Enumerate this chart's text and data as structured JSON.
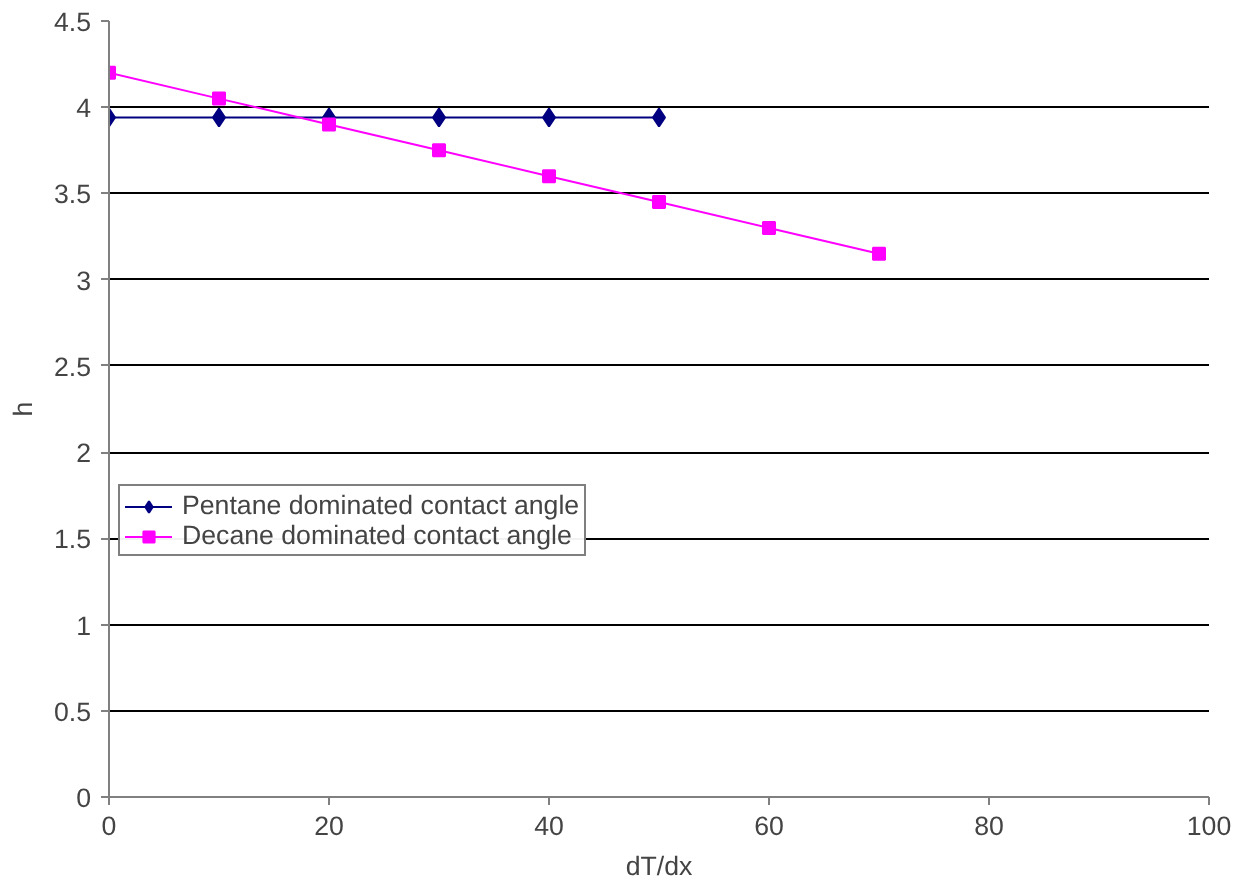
{
  "chart_data": {
    "type": "line",
    "xlabel": "dT/dx",
    "ylabel": "h",
    "x": [
      0,
      10,
      20,
      30,
      40,
      50,
      60,
      70
    ],
    "series": [
      {
        "name": "Pentane dominated contact angle",
        "color": "#000080",
        "marker": "diamond",
        "values": [
          3.94,
          3.94,
          3.94,
          3.94,
          3.94,
          3.94,
          null,
          null
        ]
      },
      {
        "name": "Decane dominated contact angle",
        "color": "#ff00ff",
        "marker": "square",
        "values": [
          4.2,
          4.05,
          3.9,
          3.75,
          3.6,
          3.45,
          3.3,
          3.15
        ]
      }
    ],
    "xlim": [
      0,
      100
    ],
    "xticks": [
      0,
      20,
      40,
      60,
      80,
      100
    ],
    "ylim": [
      0,
      4.5
    ],
    "yticks": [
      0,
      0.5,
      1,
      1.5,
      2,
      2.5,
      3,
      3.5,
      4,
      4.5
    ],
    "grid": "y",
    "legend": "left",
    "line_style": "solid"
  }
}
